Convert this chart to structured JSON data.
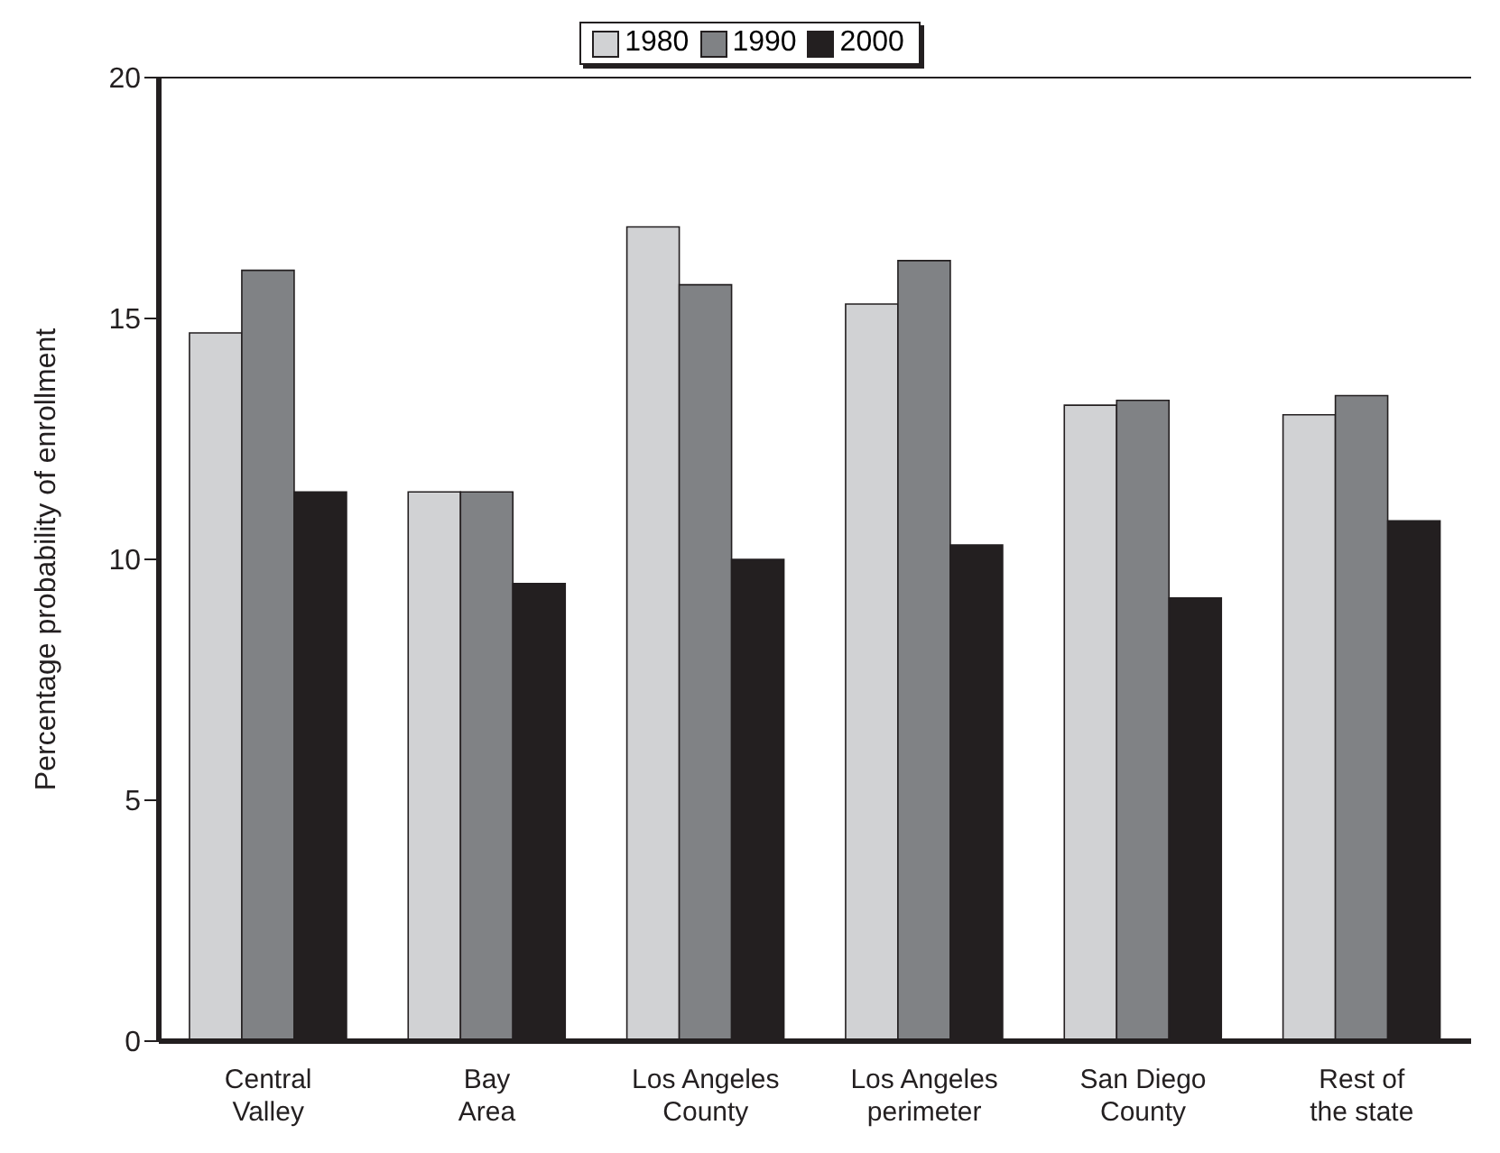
{
  "chart_data": {
    "type": "bar",
    "ylabel": "Percentage probability of enrollment",
    "categories": [
      "Central Valley",
      "Bay Area",
      "Los Angeles County",
      "Los Angeles perimeter",
      "San Diego County",
      "Rest of the state"
    ],
    "series": [
      {
        "name": "1980",
        "color": "#d1d2d4",
        "values": [
          14.7,
          11.4,
          16.9,
          15.3,
          13.2,
          13.0
        ]
      },
      {
        "name": "1990",
        "color": "#808285",
        "values": [
          16.0,
          11.4,
          15.7,
          16.2,
          13.3,
          13.4
        ]
      },
      {
        "name": "2000",
        "color": "#231f20",
        "values": [
          11.4,
          9.5,
          10.0,
          10.3,
          9.2,
          10.8
        ]
      }
    ],
    "ylim": [
      0,
      20
    ],
    "yticks": [
      0,
      5,
      10,
      15,
      20
    ],
    "grid": false,
    "legend": "top"
  }
}
